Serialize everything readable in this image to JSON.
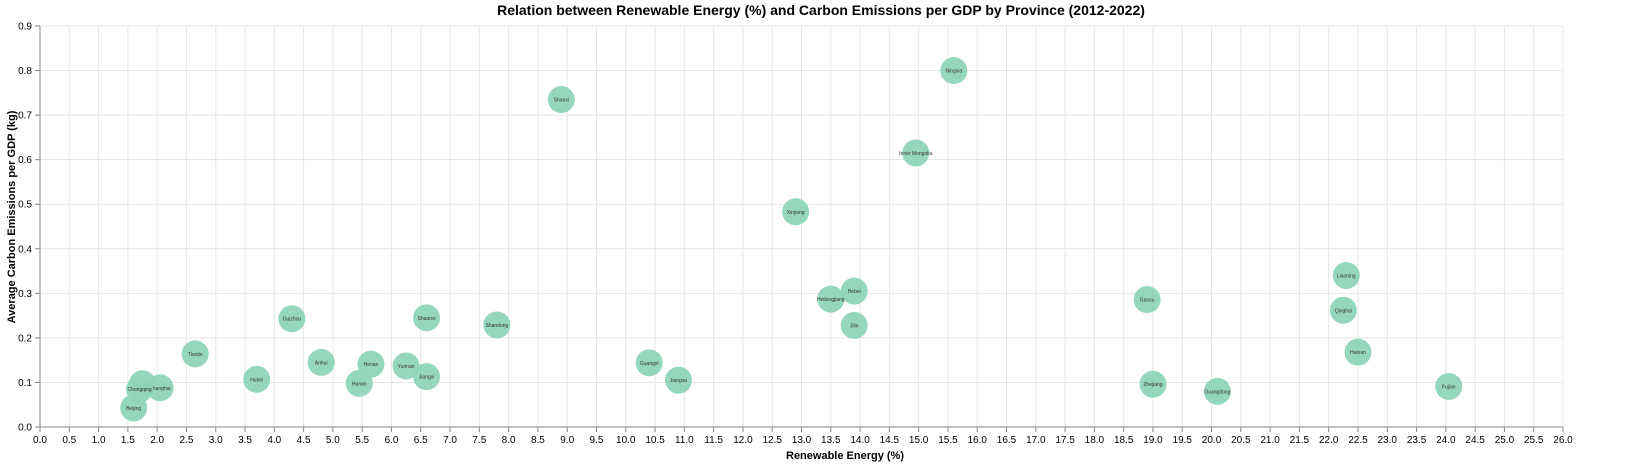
{
  "chart_data": {
    "type": "scatter",
    "title": "Relation between Renewable Energy (%) and Carbon Emissions per GDP by Province (2012-2022)",
    "xlabel": "Renewable Energy (%)",
    "ylabel": "Average Carbon Emissions per GDP (kg)",
    "xlim": [
      0,
      26
    ],
    "ylim": [
      0,
      0.9
    ],
    "x_ticks_step": 0.5,
    "y_ticks_step": 0.1,
    "grid": true,
    "point_color": "#8fd5b9",
    "points": [
      {
        "label": "Ningxia",
        "x": 15.6,
        "y": 0.8
      },
      {
        "label": "Shanxi",
        "x": 8.9,
        "y": 0.735
      },
      {
        "label": "Inner Mongolia",
        "x": 14.95,
        "y": 0.615
      },
      {
        "label": "Xinjiang",
        "x": 12.9,
        "y": 0.483
      },
      {
        "label": "Liaoning",
        "x": 22.3,
        "y": 0.34
      },
      {
        "label": "Hebei",
        "x": 13.9,
        "y": 0.305
      },
      {
        "label": "Heilongjiang",
        "x": 13.5,
        "y": 0.287
      },
      {
        "label": "Gansu",
        "x": 18.9,
        "y": 0.286
      },
      {
        "label": "Qinghai",
        "x": 22.25,
        "y": 0.262
      },
      {
        "label": "Shaanxi",
        "x": 6.6,
        "y": 0.245
      },
      {
        "label": "Guizhou",
        "x": 4.3,
        "y": 0.243
      },
      {
        "label": "Shandong",
        "x": 7.8,
        "y": 0.229
      },
      {
        "label": "Jilin",
        "x": 13.9,
        "y": 0.228
      },
      {
        "label": "Hainan",
        "x": 22.5,
        "y": 0.168
      },
      {
        "label": "Tianjin",
        "x": 2.65,
        "y": 0.164
      },
      {
        "label": "Anhui",
        "x": 4.8,
        "y": 0.145
      },
      {
        "label": "Guangxi",
        "x": 10.4,
        "y": 0.144
      },
      {
        "label": "Henan",
        "x": 5.65,
        "y": 0.141
      },
      {
        "label": "Yunnan",
        "x": 6.25,
        "y": 0.137
      },
      {
        "label": "Jiangxi",
        "x": 6.6,
        "y": 0.113
      },
      {
        "label": "Hubei",
        "x": 3.7,
        "y": 0.107
      },
      {
        "label": "Jiangsu",
        "x": 10.9,
        "y": 0.105
      },
      {
        "label": "Hunan",
        "x": 5.45,
        "y": 0.098
      },
      {
        "label": "Sichuan",
        "x": 1.75,
        "y": 0.097
      },
      {
        "label": "Zhejiang",
        "x": 19.0,
        "y": 0.096
      },
      {
        "label": "Fujian",
        "x": 24.05,
        "y": 0.091
      },
      {
        "label": "Shanghai",
        "x": 2.05,
        "y": 0.088
      },
      {
        "label": "Chongqing",
        "x": 1.7,
        "y": 0.085
      },
      {
        "label": "Guangdong",
        "x": 20.1,
        "y": 0.08
      },
      {
        "label": "Beijing",
        "x": 1.6,
        "y": 0.043
      }
    ]
  }
}
